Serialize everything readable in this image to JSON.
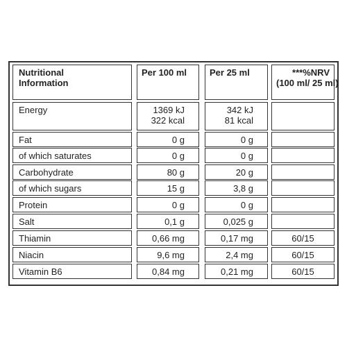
{
  "table": {
    "header": [
      [
        "Nutritional",
        "Information"
      ],
      [
        "Per 100 ml"
      ],
      [
        "Per 25 ml"
      ],
      [
        "***%NRV",
        "(100 ml/ 25 ml)"
      ]
    ],
    "rows": [
      {
        "name": "Energy",
        "per_100ml": [
          "1369 kJ",
          "322 kcal"
        ],
        "per_25ml": [
          "342 kJ",
          "81 kcal"
        ]
      },
      {
        "name": "Fat",
        "per_100ml": [
          "0 g"
        ],
        "per_25ml": [
          "0 g"
        ]
      },
      {
        "name": "of which saturates",
        "per_100ml": [
          "0 g"
        ],
        "per_25ml": [
          "0 g"
        ]
      },
      {
        "name": "Carbohydrate",
        "per_100ml": [
          "80 g"
        ],
        "per_25ml": [
          "20 g"
        ]
      },
      {
        "name": "of which sugars",
        "per_100ml": [
          "15 g"
        ],
        "per_25ml": [
          "3,8 g"
        ]
      },
      {
        "name": "Protein",
        "per_100ml": [
          "0 g"
        ],
        "per_25ml": [
          "0 g"
        ]
      },
      {
        "name": "Salt",
        "per_100ml": [
          "0,1 g"
        ],
        "per_25ml": [
          "0,025 g"
        ]
      },
      {
        "name": "Thiamin",
        "per_100ml": [
          "0,66 mg"
        ],
        "per_25ml": [
          "0,17 mg"
        ],
        "nrv": [
          "60/15"
        ]
      },
      {
        "name": "Niacin",
        "per_100ml": [
          "9,6 mg"
        ],
        "per_25ml": [
          "2,4 mg"
        ],
        "nrv": [
          "60/15"
        ]
      },
      {
        "name": "Vitamin B6",
        "per_100ml": [
          "0,84 mg"
        ],
        "per_25ml": [
          "0,21 mg"
        ],
        "nrv": [
          "60/15"
        ]
      }
    ]
  }
}
